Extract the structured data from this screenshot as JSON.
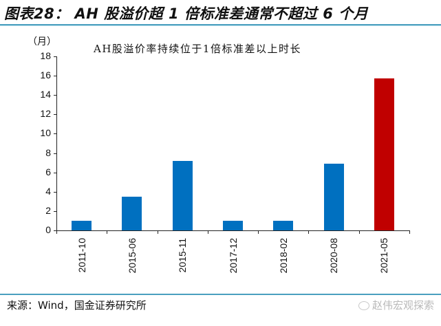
{
  "figure": {
    "title": "图表28： AH 股溢价超 1 倍标准差通常不超过 6 个月",
    "source": "来源：Wind，国金证券研究所",
    "watermark": "赵伟宏观探索",
    "watermark_icon": "wechat-icon"
  },
  "colors": {
    "bar_default": "#0070C0",
    "bar_highlight": "#C00000",
    "rule": "#4a9fbf",
    "axis": "#222222"
  },
  "chart_data": {
    "type": "bar",
    "title": "AH股溢价率持续位于1倍标准差以上时长",
    "ylabel": "（月）",
    "xlabel": "",
    "ylim": [
      0,
      18
    ],
    "yticks": [
      0,
      2,
      4,
      6,
      8,
      10,
      12,
      14,
      16,
      18
    ],
    "grid": false,
    "legend": null,
    "categories": [
      "2011-10",
      "2015-06",
      "2015-11",
      "2017-12",
      "2018-02",
      "2020-08",
      "2021-05"
    ],
    "values": [
      1,
      3.5,
      7.2,
      1,
      1,
      6.9,
      15.7
    ],
    "highlight_index": 6
  }
}
